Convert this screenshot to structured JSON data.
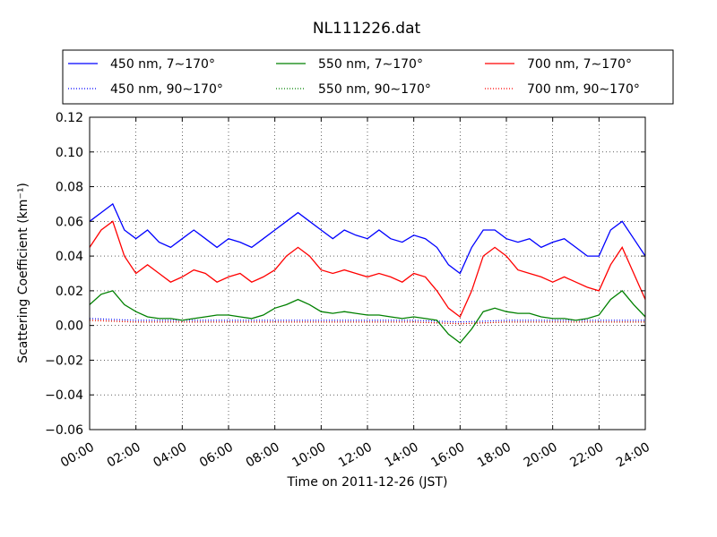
{
  "chart_data": {
    "type": "line",
    "title": "NL111226.dat",
    "xlabel": "Time on 2011-12-26 (JST)",
    "ylabel": "Scattering Coefficient (km⁻¹)",
    "xlim": [
      0,
      24
    ],
    "ylim": [
      -0.06,
      0.12
    ],
    "x_tick_labels": [
      "00:00",
      "02:00",
      "04:00",
      "06:00",
      "08:00",
      "10:00",
      "12:00",
      "14:00",
      "16:00",
      "18:00",
      "20:00",
      "22:00",
      "24:00"
    ],
    "y_ticks": [
      -0.06,
      -0.04,
      -0.02,
      0.0,
      0.02,
      0.04,
      0.06,
      0.08,
      0.1,
      0.12
    ],
    "y_tick_labels": [
      "−0.06",
      "−0.04",
      "−0.02",
      "0.00",
      "0.02",
      "0.04",
      "0.06",
      "0.08",
      "0.10",
      "0.12"
    ],
    "grid": true,
    "legend_position": "top",
    "series": [
      {
        "name": "450 nm, 7∼170°",
        "color": "#0000ff",
        "style": "solid",
        "x": [
          0.0,
          0.5,
          1.0,
          1.5,
          2.0,
          2.5,
          3.0,
          3.5,
          4.0,
          4.5,
          5.0,
          5.5,
          6.0,
          6.5,
          7.0,
          7.5,
          8.0,
          8.5,
          9.0,
          9.5,
          10.0,
          10.5,
          11.0,
          11.5,
          12.0,
          12.5,
          13.0,
          13.5,
          14.0,
          14.5,
          15.0,
          15.5,
          16.0,
          16.5,
          17.0,
          17.5,
          18.0,
          18.5,
          19.0,
          19.5,
          20.0,
          20.5,
          21.0,
          21.5,
          22.0,
          22.5,
          23.0,
          23.5,
          24.0
        ],
        "values": [
          0.06,
          0.065,
          0.07,
          0.055,
          0.05,
          0.055,
          0.048,
          0.045,
          0.05,
          0.055,
          0.05,
          0.045,
          0.05,
          0.048,
          0.045,
          0.05,
          0.055,
          0.06,
          0.065,
          0.06,
          0.055,
          0.05,
          0.055,
          0.052,
          0.05,
          0.055,
          0.05,
          0.048,
          0.052,
          0.05,
          0.045,
          0.035,
          0.03,
          0.045,
          0.055,
          0.055,
          0.05,
          0.048,
          0.05,
          0.045,
          0.048,
          0.05,
          0.045,
          0.04,
          0.04,
          0.055,
          0.06,
          0.05,
          0.04
        ]
      },
      {
        "name": "450 nm, 90∼170°",
        "color": "#0000ff",
        "style": "dotted",
        "x": [
          0,
          2,
          4,
          6,
          8,
          10,
          12,
          14,
          16,
          18,
          20,
          22,
          24
        ],
        "values": [
          0.004,
          0.003,
          0.003,
          0.003,
          0.003,
          0.003,
          0.003,
          0.003,
          0.002,
          0.003,
          0.003,
          0.003,
          0.003
        ]
      },
      {
        "name": "550 nm, 7∼170°",
        "color": "#008000",
        "style": "solid",
        "x": [
          0.0,
          0.5,
          1.0,
          1.5,
          2.0,
          2.5,
          3.0,
          3.5,
          4.0,
          4.5,
          5.0,
          5.5,
          6.0,
          6.5,
          7.0,
          7.5,
          8.0,
          8.5,
          9.0,
          9.5,
          10.0,
          10.5,
          11.0,
          11.5,
          12.0,
          12.5,
          13.0,
          13.5,
          14.0,
          14.5,
          15.0,
          15.5,
          16.0,
          16.5,
          17.0,
          17.5,
          18.0,
          18.5,
          19.0,
          19.5,
          20.0,
          20.5,
          21.0,
          21.5,
          22.0,
          22.5,
          23.0,
          23.5,
          24.0
        ],
        "values": [
          0.012,
          0.018,
          0.02,
          0.012,
          0.008,
          0.005,
          0.004,
          0.004,
          0.003,
          0.004,
          0.005,
          0.006,
          0.006,
          0.005,
          0.004,
          0.006,
          0.01,
          0.012,
          0.015,
          0.012,
          0.008,
          0.007,
          0.008,
          0.007,
          0.006,
          0.006,
          0.005,
          0.004,
          0.005,
          0.004,
          0.003,
          -0.005,
          -0.01,
          -0.002,
          0.008,
          0.01,
          0.008,
          0.007,
          0.007,
          0.005,
          0.004,
          0.004,
          0.003,
          0.004,
          0.006,
          0.015,
          0.02,
          0.012,
          0.005
        ]
      },
      {
        "name": "550 nm, 90∼170°",
        "color": "#008000",
        "style": "dotted",
        "x": [
          0,
          2,
          4,
          6,
          8,
          10,
          12,
          14,
          16,
          18,
          20,
          22,
          24
        ],
        "values": [
          0.003,
          0.002,
          0.002,
          0.002,
          0.002,
          0.002,
          0.002,
          0.002,
          0.001,
          0.002,
          0.002,
          0.002,
          0.002
        ]
      },
      {
        "name": "700 nm, 7∼170°",
        "color": "#ff0000",
        "style": "solid",
        "x": [
          0.0,
          0.5,
          1.0,
          1.5,
          2.0,
          2.5,
          3.0,
          3.5,
          4.0,
          4.5,
          5.0,
          5.5,
          6.0,
          6.5,
          7.0,
          7.5,
          8.0,
          8.5,
          9.0,
          9.5,
          10.0,
          10.5,
          11.0,
          11.5,
          12.0,
          12.5,
          13.0,
          13.5,
          14.0,
          14.5,
          15.0,
          15.5,
          16.0,
          16.5,
          17.0,
          17.5,
          18.0,
          18.5,
          19.0,
          19.5,
          20.0,
          20.5,
          21.0,
          21.5,
          22.0,
          22.5,
          23.0,
          23.5,
          24.0
        ],
        "values": [
          0.045,
          0.055,
          0.06,
          0.04,
          0.03,
          0.035,
          0.03,
          0.025,
          0.028,
          0.032,
          0.03,
          0.025,
          0.028,
          0.03,
          0.025,
          0.028,
          0.032,
          0.04,
          0.045,
          0.04,
          0.032,
          0.03,
          0.032,
          0.03,
          0.028,
          0.03,
          0.028,
          0.025,
          0.03,
          0.028,
          0.02,
          0.01,
          0.005,
          0.02,
          0.04,
          0.045,
          0.04,
          0.032,
          0.03,
          0.028,
          0.025,
          0.028,
          0.025,
          0.022,
          0.02,
          0.035,
          0.045,
          0.03,
          0.015
        ]
      },
      {
        "name": "700 nm, 90∼170°",
        "color": "#ff0000",
        "style": "dotted",
        "x": [
          0,
          2,
          4,
          6,
          8,
          10,
          12,
          14,
          16,
          18,
          20,
          22,
          24
        ],
        "values": [
          0.003,
          0.002,
          0.002,
          0.002,
          0.002,
          0.002,
          0.002,
          0.002,
          0.001,
          0.002,
          0.002,
          0.002,
          0.002
        ]
      }
    ]
  }
}
